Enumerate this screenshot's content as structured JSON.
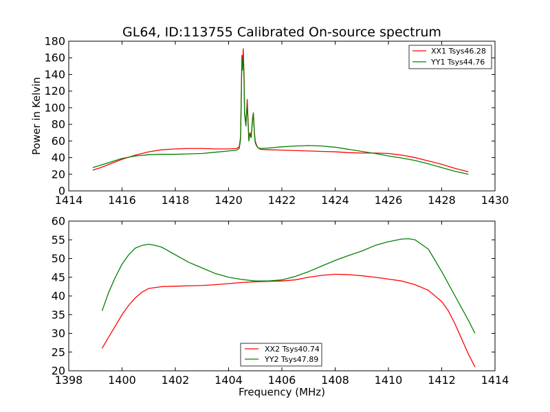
{
  "figure": {
    "title": "GL64, ID:113755 Calibrated On-source spectrum"
  },
  "chart_data": [
    {
      "type": "line",
      "title": "GL64, ID:113755 Calibrated On-source spectrum",
      "xlabel": "",
      "ylabel": "Power in Kelvin",
      "xlim": [
        1414,
        1430
      ],
      "ylim": [
        0,
        180
      ],
      "xticks": [
        1414,
        1416,
        1418,
        1420,
        1422,
        1424,
        1426,
        1428,
        1430
      ],
      "yticks": [
        0,
        20,
        40,
        60,
        80,
        100,
        120,
        140,
        160,
        180
      ],
      "grid": false,
      "legend_position": "top-right",
      "series": [
        {
          "name": "XX1 Tsys46.28",
          "color": "#ff0000",
          "x": [
            1414.9,
            1415.2,
            1415.6,
            1416.0,
            1416.5,
            1417.0,
            1417.5,
            1418.0,
            1418.5,
            1419.0,
            1419.5,
            1420.0,
            1420.3,
            1420.4,
            1420.45,
            1420.5,
            1420.52,
            1420.55,
            1420.58,
            1420.6,
            1420.65,
            1420.7,
            1420.73,
            1420.76,
            1420.8,
            1420.85,
            1420.9,
            1420.93,
            1420.97,
            1421.0,
            1421.05,
            1421.1,
            1421.2,
            1421.5,
            1422.0,
            1422.5,
            1423.0,
            1423.5,
            1424.0,
            1424.5,
            1425.0,
            1425.5,
            1426.0,
            1426.5,
            1427.0,
            1427.5,
            1428.0,
            1428.5,
            1429.0
          ],
          "y": [
            25,
            28,
            33,
            38,
            43,
            47,
            49.5,
            50.5,
            51,
            51,
            50.5,
            50.5,
            51,
            53,
            65,
            163,
            150,
            171,
            140,
            95,
            80,
            110,
            85,
            62,
            70,
            66,
            88,
            93,
            70,
            60,
            55,
            52,
            50,
            49.5,
            49,
            48.5,
            48,
            47.5,
            47,
            46,
            45.5,
            45.5,
            45,
            43,
            40,
            36,
            32,
            27,
            23
          ]
        },
        {
          "name": "YY1 Tsys44.76",
          "color": "#008000",
          "x": [
            1414.9,
            1415.2,
            1415.6,
            1416.0,
            1416.5,
            1417.0,
            1417.5,
            1418.0,
            1418.5,
            1419.0,
            1419.5,
            1420.0,
            1420.3,
            1420.4,
            1420.45,
            1420.5,
            1420.52,
            1420.55,
            1420.58,
            1420.6,
            1420.65,
            1420.7,
            1420.73,
            1420.76,
            1420.8,
            1420.85,
            1420.9,
            1420.93,
            1420.97,
            1421.0,
            1421.05,
            1421.1,
            1421.2,
            1421.5,
            1422.0,
            1422.5,
            1423.0,
            1423.5,
            1424.0,
            1424.5,
            1425.0,
            1425.5,
            1426.0,
            1426.5,
            1427.0,
            1427.5,
            1428.0,
            1428.5,
            1429.0
          ],
          "y": [
            28,
            31,
            35,
            39,
            42,
            43.5,
            44,
            44,
            44.5,
            45,
            46.5,
            48,
            49,
            51,
            62,
            158,
            145,
            162,
            135,
            92,
            78,
            105,
            82,
            60,
            68,
            64,
            85,
            94,
            68,
            58,
            54,
            52,
            51,
            51.5,
            53,
            54,
            54.5,
            54,
            52.5,
            50,
            47.5,
            45,
            42,
            39.5,
            36.5,
            32.5,
            28,
            23.5,
            20
          ]
        }
      ]
    },
    {
      "type": "line",
      "title": "",
      "xlabel": "Frequency (MHz)",
      "ylabel": "",
      "xlim": [
        1398,
        1414
      ],
      "ylim": [
        20,
        60
      ],
      "xticks": [
        1398,
        1400,
        1402,
        1404,
        1406,
        1408,
        1410,
        1412,
        1414
      ],
      "yticks": [
        20,
        25,
        30,
        35,
        40,
        45,
        50,
        55,
        60
      ],
      "grid": false,
      "legend_position": "bottom-center",
      "series": [
        {
          "name": "XX2 Tsys40.74",
          "color": "#ff0000",
          "x": [
            1399.25,
            1399.5,
            1399.75,
            1400.0,
            1400.25,
            1400.5,
            1400.75,
            1401.0,
            1401.5,
            1402.0,
            1402.5,
            1403.0,
            1403.5,
            1404.0,
            1404.5,
            1405.0,
            1405.5,
            1406.0,
            1406.5,
            1407.0,
            1407.5,
            1408.0,
            1408.5,
            1409.0,
            1409.5,
            1410.0,
            1410.5,
            1411.0,
            1411.5,
            1412.0,
            1412.25,
            1412.5,
            1412.75,
            1413.0,
            1413.25
          ],
          "y": [
            26,
            29,
            32,
            35,
            37.5,
            39.5,
            41,
            42,
            42.5,
            42.6,
            42.7,
            42.8,
            43,
            43.3,
            43.6,
            43.8,
            43.9,
            44,
            44.3,
            45,
            45.5,
            45.8,
            45.7,
            45.4,
            45,
            44.5,
            44,
            43,
            41.5,
            38.5,
            36,
            32.5,
            28.5,
            24.5,
            21
          ]
        },
        {
          "name": "YY2 Tsys47.89",
          "color": "#008000",
          "x": [
            1399.25,
            1399.5,
            1399.75,
            1400.0,
            1400.25,
            1400.5,
            1400.75,
            1401.0,
            1401.25,
            1401.5,
            1402.0,
            1402.5,
            1403.0,
            1403.5,
            1404.0,
            1404.5,
            1405.0,
            1405.5,
            1406.0,
            1406.5,
            1407.0,
            1407.5,
            1408.0,
            1408.5,
            1409.0,
            1409.5,
            1410.0,
            1410.5,
            1410.75,
            1411.0,
            1411.5,
            1412.0,
            1412.5,
            1413.0,
            1413.25
          ],
          "y": [
            36,
            41,
            45,
            48.5,
            51,
            52.8,
            53.5,
            53.8,
            53.5,
            53,
            51,
            49,
            47.5,
            46,
            45,
            44.4,
            44,
            44,
            44.3,
            45.2,
            46.5,
            48,
            49.5,
            50.8,
            52,
            53.5,
            54.5,
            55.2,
            55.3,
            55,
            52.5,
            46.5,
            40,
            33.5,
            30
          ]
        }
      ]
    }
  ]
}
